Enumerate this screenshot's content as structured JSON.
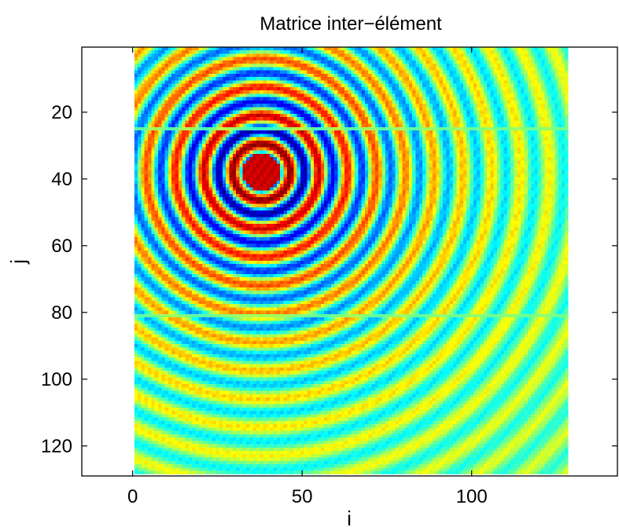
{
  "chart_data": {
    "type": "heatmap",
    "title": "Matrice inter−élément",
    "xlabel": "i",
    "ylabel": "j",
    "xlim": [
      -15,
      143
    ],
    "ylim": [
      129,
      0.5
    ],
    "x_ticks": [
      0,
      50,
      100
    ],
    "x_tick_labels": [
      "0",
      "50",
      "100"
    ],
    "y_ticks": [
      20,
      40,
      60,
      80,
      100,
      120
    ],
    "y_tick_labels": [
      "20",
      "40",
      "60",
      "80",
      "100",
      "120"
    ],
    "matrix_size": [
      128,
      128
    ],
    "colormap": "jet",
    "color_scale": [
      -1,
      1
    ],
    "pattern": {
      "kind": "concentric rings",
      "center_i": 38,
      "center_j": 38,
      "ring_period_i": 8.5,
      "dead_rows_j": [
        25,
        81
      ]
    },
    "y_direction": "reversed",
    "grid": false,
    "legend": "none"
  }
}
